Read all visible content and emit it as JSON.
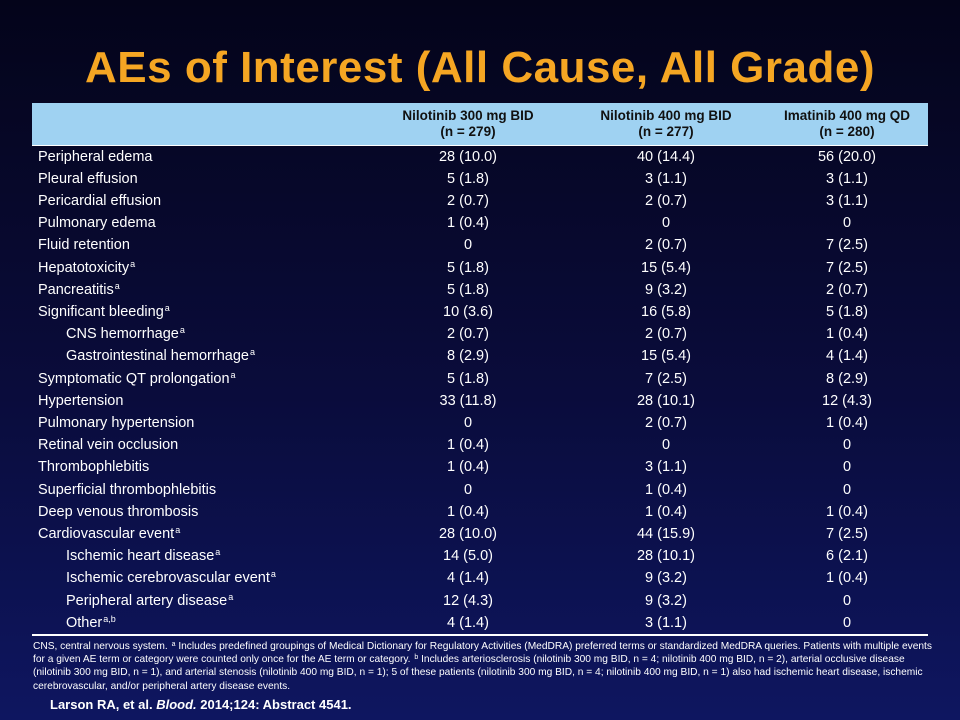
{
  "title": "AEs of Interest (All Cause, All Grade)",
  "table": {
    "columns": [
      {
        "name": "Nilotinib 300 mg BID",
        "n": "(n = 279)"
      },
      {
        "name": "Nilotinib 400 mg BID",
        "n": "(n = 277)"
      },
      {
        "name": "Imatinib 400 mg QD",
        "n": "(n = 280)"
      }
    ],
    "rows": [
      {
        "label": "Peripheral edema",
        "sup": "",
        "indent": false,
        "values": [
          "28 (10.0)",
          "40 (14.4)",
          "56 (20.0)"
        ]
      },
      {
        "label": "Pleural effusion",
        "sup": "",
        "indent": false,
        "values": [
          "5 (1.8)",
          "3 (1.1)",
          "3 (1.1)"
        ]
      },
      {
        "label": "Pericardial effusion",
        "sup": "",
        "indent": false,
        "values": [
          "2 (0.7)",
          "2 (0.7)",
          "3 (1.1)"
        ]
      },
      {
        "label": "Pulmonary edema",
        "sup": "",
        "indent": false,
        "values": [
          "1 (0.4)",
          "0",
          "0"
        ]
      },
      {
        "label": "Fluid retention",
        "sup": "",
        "indent": false,
        "values": [
          "0",
          "2 (0.7)",
          "7 (2.5)"
        ]
      },
      {
        "label": "Hepatotoxicity",
        "sup": "a",
        "indent": false,
        "values": [
          "5 (1.8)",
          "15 (5.4)",
          "7 (2.5)"
        ]
      },
      {
        "label": "Pancreatitis",
        "sup": "a",
        "indent": false,
        "values": [
          "5 (1.8)",
          "9 (3.2)",
          "2 (0.7)"
        ]
      },
      {
        "label": "Significant bleeding",
        "sup": "a",
        "indent": false,
        "values": [
          "10 (3.6)",
          "16 (5.8)",
          "5 (1.8)"
        ]
      },
      {
        "label": "CNS hemorrhage",
        "sup": "a",
        "indent": true,
        "values": [
          "2 (0.7)",
          "2 (0.7)",
          "1 (0.4)"
        ]
      },
      {
        "label": "Gastrointestinal hemorrhage",
        "sup": "a",
        "indent": true,
        "values": [
          "8 (2.9)",
          "15 (5.4)",
          "4 (1.4)"
        ]
      },
      {
        "label": "Symptomatic QT prolongation",
        "sup": "a",
        "indent": false,
        "values": [
          "5 (1.8)",
          "7 (2.5)",
          "8 (2.9)"
        ]
      },
      {
        "label": "Hypertension",
        "sup": "",
        "indent": false,
        "values": [
          "33 (11.8)",
          "28 (10.1)",
          "12 (4.3)"
        ]
      },
      {
        "label": "Pulmonary hypertension",
        "sup": "",
        "indent": false,
        "values": [
          "0",
          "2 (0.7)",
          "1 (0.4)"
        ]
      },
      {
        "label": "Retinal vein occlusion",
        "sup": "",
        "indent": false,
        "values": [
          "1 (0.4)",
          "0",
          "0"
        ]
      },
      {
        "label": "Thrombophlebitis",
        "sup": "",
        "indent": false,
        "values": [
          "1 (0.4)",
          "3 (1.1)",
          "0"
        ]
      },
      {
        "label": "Superficial thrombophlebitis",
        "sup": "",
        "indent": false,
        "values": [
          "0",
          "1 (0.4)",
          "0"
        ]
      },
      {
        "label": "Deep venous thrombosis",
        "sup": "",
        "indent": false,
        "values": [
          "1 (0.4)",
          "1 (0.4)",
          "1 (0.4)"
        ]
      },
      {
        "label": "Cardiovascular event",
        "sup": "a",
        "indent": false,
        "values": [
          "28 (10.0)",
          "44 (15.9)",
          "7 (2.5)"
        ]
      },
      {
        "label": "Ischemic heart disease",
        "sup": "a",
        "indent": true,
        "values": [
          "14 (5.0)",
          "28 (10.1)",
          "6 (2.1)"
        ]
      },
      {
        "label": "Ischemic cerebrovascular event",
        "sup": "a",
        "indent": true,
        "values": [
          "4 (1.4)",
          "9 (3.2)",
          "1 (0.4)"
        ]
      },
      {
        "label": "Peripheral artery disease",
        "sup": "a",
        "indent": true,
        "values": [
          "12 (4.3)",
          "9 (3.2)",
          "0"
        ]
      },
      {
        "label": "Other",
        "sup": "a,b",
        "indent": true,
        "values": [
          "4 (1.4)",
          "3 (1.1)",
          "0"
        ]
      }
    ]
  },
  "footnote": {
    "part1": "CNS, central nervous system. ",
    "sup_a": "a",
    "part2": " Includes predefined groupings of Medical Dictionary for Regulatory Activities (MedDRA) preferred terms or standardized MedDRA queries. Patients with multiple events for a given AE term or category were counted only once for the AE term or category. ",
    "sup_b": "b",
    "part3": " Includes arteriosclerosis (nilotinib 300 mg BID, n = 4; nilotinib 400 mg BID, n = 2), arterial occlusive disease (nilotinib 300 mg BID, n = 1), and arterial stenosis (nilotinib 400 mg BID, n = 1); 5 of these patients (nilotinib 300 mg BID, n = 4; nilotinib 400 mg BID, n = 1) also had ischemic heart disease, ischemic cerebrovascular, and/or peripheral artery disease events."
  },
  "citation": {
    "authors": "Larson RA, et al. ",
    "journal": "Blood.",
    "rest": " 2014;124: Abstract 4541."
  },
  "colors": {
    "title": "#f5a623",
    "header_bg": "#9fd2f2",
    "background_top": "#04041a",
    "background_bottom": "#0e1660"
  }
}
